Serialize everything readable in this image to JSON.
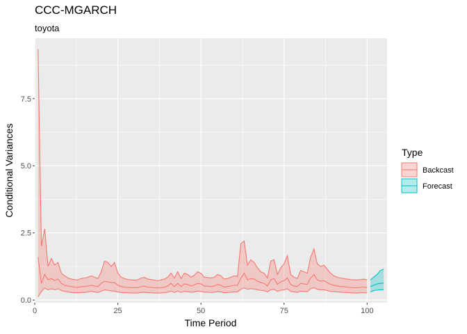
{
  "chart_data": {
    "type": "area",
    "title": "CCC-MGARCH",
    "subtitle": "toyota",
    "xlabel": "Time Period",
    "ylabel": "Conditional Variances",
    "xlim": [
      0,
      106
    ],
    "ylim": [
      -0.1,
      9.75
    ],
    "xticks": [
      0,
      25,
      50,
      75,
      100
    ],
    "xtick_labels": [
      "0",
      "25",
      "50",
      "75",
      "100"
    ],
    "yticks": [
      0.0,
      2.5,
      5.0,
      7.5
    ],
    "ytick_labels": [
      "0.0",
      "2.5",
      "5.0",
      "7.5"
    ],
    "grid": true,
    "legend": {
      "title": "Type",
      "position": "right"
    },
    "series": [
      {
        "name": "Backcast",
        "color": "#F8766D",
        "fill": "#F8766D",
        "x_start": 1,
        "upper": [
          9.35,
          2.0,
          2.65,
          1.25,
          1.55,
          1.3,
          1.4,
          1.0,
          0.9,
          0.82,
          0.78,
          0.76,
          0.75,
          0.8,
          0.82,
          0.85,
          0.9,
          0.85,
          0.8,
          1.05,
          1.45,
          1.4,
          1.25,
          1.4,
          1.0,
          0.85,
          0.8,
          0.76,
          0.75,
          0.74,
          0.75,
          0.82,
          0.84,
          0.78,
          0.76,
          0.74,
          0.72,
          0.75,
          0.78,
          0.85,
          1.0,
          0.82,
          1.05,
          0.8,
          1.0,
          0.95,
          0.85,
          0.92,
          1.05,
          1.0,
          0.85,
          0.84,
          0.82,
          0.85,
          0.95,
          0.9,
          0.78,
          0.8,
          0.85,
          0.9,
          0.88,
          2.1,
          2.2,
          1.3,
          1.5,
          1.4,
          1.2,
          1.05,
          1.0,
          0.82,
          1.45,
          1.5,
          0.95,
          1.2,
          1.35,
          1.65,
          0.95,
          0.85,
          0.8,
          1.1,
          1.05,
          1.0,
          1.6,
          1.9,
          1.35,
          1.25,
          1.3,
          1.15,
          1.0,
          0.9,
          0.85,
          0.82,
          0.8,
          0.78,
          0.76,
          0.75,
          0.75,
          0.76,
          0.78,
          0.75
        ],
        "lower": [
          1.6,
          0.62,
          0.95,
          0.75,
          0.8,
          0.72,
          0.78,
          0.62,
          0.55,
          0.52,
          0.5,
          0.48,
          0.47,
          0.5,
          0.5,
          0.52,
          0.55,
          0.52,
          0.5,
          0.62,
          0.7,
          0.68,
          0.65,
          0.65,
          0.55,
          0.5,
          0.48,
          0.47,
          0.46,
          0.46,
          0.46,
          0.5,
          0.52,
          0.48,
          0.47,
          0.46,
          0.45,
          0.46,
          0.48,
          0.52,
          0.62,
          0.5,
          0.62,
          0.5,
          0.6,
          0.58,
          0.52,
          0.56,
          0.62,
          0.6,
          0.52,
          0.52,
          0.5,
          0.52,
          0.58,
          0.55,
          0.48,
          0.5,
          0.52,
          0.55,
          0.55,
          0.8,
          1.0,
          0.75,
          0.8,
          0.78,
          0.7,
          0.65,
          0.62,
          0.52,
          0.75,
          0.8,
          0.58,
          0.68,
          0.72,
          0.82,
          0.58,
          0.52,
          0.5,
          0.62,
          0.6,
          0.58,
          0.82,
          0.95,
          0.75,
          0.7,
          0.72,
          0.65,
          0.58,
          0.55,
          0.52,
          0.5,
          0.5,
          0.48,
          0.47,
          0.46,
          0.46,
          0.47,
          0.48,
          0.46
        ],
        "inner": [
          0.12,
          0.32,
          0.45,
          0.38,
          0.42,
          0.38,
          0.42,
          0.35,
          0.32,
          0.3,
          0.28,
          0.27,
          0.27,
          0.28,
          0.28,
          0.3,
          0.32,
          0.3,
          0.28,
          0.33,
          0.38,
          0.36,
          0.34,
          0.33,
          0.3,
          0.28,
          0.27,
          0.27,
          0.26,
          0.26,
          0.26,
          0.28,
          0.29,
          0.27,
          0.27,
          0.26,
          0.26,
          0.26,
          0.27,
          0.29,
          0.33,
          0.28,
          0.33,
          0.28,
          0.32,
          0.31,
          0.29,
          0.3,
          0.33,
          0.32,
          0.29,
          0.29,
          0.28,
          0.29,
          0.31,
          0.3,
          0.27,
          0.28,
          0.29,
          0.3,
          0.3,
          0.4,
          0.45,
          0.4,
          0.42,
          0.41,
          0.38,
          0.36,
          0.35,
          0.3,
          0.38,
          0.4,
          0.32,
          0.36,
          0.38,
          0.42,
          0.32,
          0.3,
          0.28,
          0.33,
          0.32,
          0.31,
          0.42,
          0.46,
          0.4,
          0.38,
          0.38,
          0.35,
          0.32,
          0.31,
          0.3,
          0.29,
          0.28,
          0.28,
          0.27,
          0.26,
          0.26,
          0.27,
          0.27,
          0.26
        ]
      },
      {
        "name": "Forecast",
        "color": "#00BFC4",
        "fill": "#00BFC4",
        "x_start": 101,
        "upper": [
          0.75,
          0.85,
          0.95,
          1.1,
          1.15
        ],
        "lower": [
          0.5,
          0.55,
          0.6,
          0.62,
          0.63
        ],
        "inner": [
          0.3,
          0.35,
          0.37,
          0.38,
          0.38
        ]
      }
    ]
  }
}
